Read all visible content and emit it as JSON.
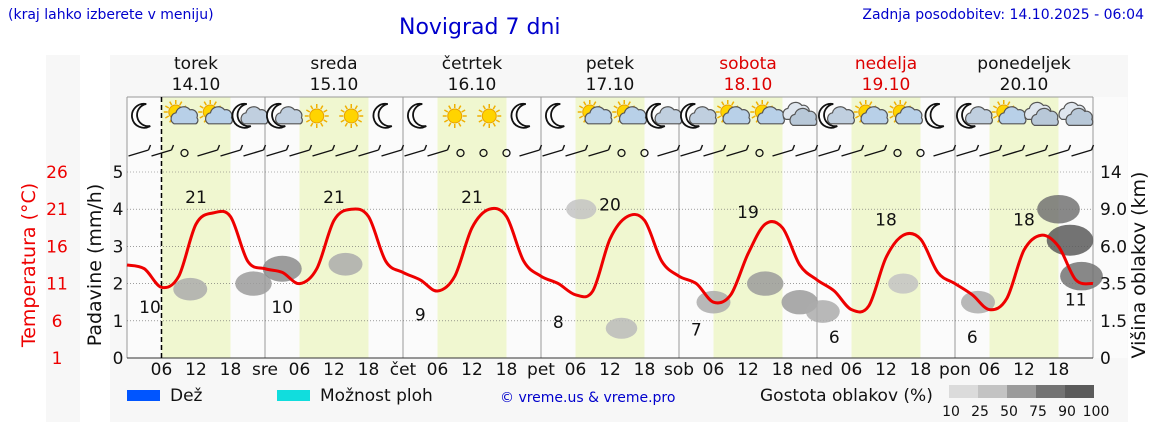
{
  "header": {
    "note": "(kraj lahko izberete v meniju)",
    "title": "Novigrad 7 dni",
    "updated": "Zadnja posodobitev: 14.10.2025 - 06:04"
  },
  "colors": {
    "temperature": "#ee0000",
    "day_band": "#f0f7d0",
    "rain": "#0055ff",
    "showers": "#11dddd",
    "weekend": "#dd0000",
    "link": "#0000cc"
  },
  "legend": {
    "rain_label": "Dež",
    "showers_label": "Možnost ploh",
    "copyright": "© vreme.us & vreme.pro",
    "cloud_density_label": "Gostota oblakov (%)",
    "cloud_density_ticks": [
      "10",
      "25",
      "50",
      "75",
      "90",
      "100"
    ]
  },
  "chart_data": {
    "type": "line",
    "title": "Novigrad 7 dni",
    "days": [
      {
        "name": "torek",
        "date": "14.10",
        "weekend": false,
        "abbr": "sre"
      },
      {
        "name": "sreda",
        "date": "15.10",
        "weekend": false,
        "abbr": "čet"
      },
      {
        "name": "četrtek",
        "date": "16.10",
        "weekend": false,
        "abbr": "pet"
      },
      {
        "name": "petek",
        "date": "17.10",
        "weekend": false,
        "abbr": "sob"
      },
      {
        "name": "sobota",
        "date": "18.10",
        "weekend": true,
        "abbr": "ned"
      },
      {
        "name": "nedelja",
        "date": "19.10",
        "weekend": true,
        "abbr": "pon"
      },
      {
        "name": "ponedeljek",
        "date": "20.10",
        "weekend": false,
        "abbr": ""
      }
    ],
    "x_hour_ticks": [
      "06",
      "12",
      "18"
    ],
    "x_start_hour": 0,
    "x_end_hour": 168,
    "now_hour": 6,
    "temp_axis": {
      "label": "Temperatura (°C)",
      "ticks": [
        1,
        6,
        11,
        16,
        21,
        26
      ],
      "range": [
        1,
        26
      ]
    },
    "precip_axis": {
      "label": "Padavine (mm/h)",
      "ticks": [
        0,
        1,
        2,
        3,
        4,
        5
      ],
      "range": [
        0,
        5
      ]
    },
    "cloud_axis": {
      "label": "Višina oblakov (km)",
      "ticks": [
        "0",
        "1.5",
        "3.5",
        "6.0",
        "9.0",
        "14"
      ]
    },
    "temperature": {
      "hours": [
        0,
        3,
        6,
        9,
        12,
        15,
        18,
        21,
        24,
        27,
        30,
        33,
        36,
        39,
        42,
        45,
        48,
        51,
        54,
        57,
        60,
        63,
        66,
        69,
        72,
        75,
        78,
        81,
        84,
        87,
        90,
        93,
        96,
        99,
        102,
        105,
        108,
        111,
        114,
        117,
        120,
        123,
        126,
        129,
        132,
        135,
        138,
        141,
        144,
        147,
        150,
        153,
        156,
        159,
        162,
        165,
        168
      ],
      "values": [
        13.5,
        13,
        10.5,
        12,
        19,
        20.5,
        20,
        14,
        13,
        12.5,
        11,
        13,
        19.5,
        21,
        20,
        14,
        12.5,
        11.5,
        10,
        12,
        18.5,
        21,
        20,
        14,
        12,
        11,
        9.5,
        10,
        17,
        20,
        19.5,
        14,
        12,
        11,
        8.5,
        9.5,
        15,
        19,
        18.5,
        13.5,
        11.5,
        10,
        7.5,
        8,
        14.5,
        17.5,
        17,
        12.5,
        11,
        9.5,
        7.5,
        9,
        15.5,
        17.5,
        16,
        11.5,
        11
      ]
    },
    "temp_labels": [
      {
        "hour": 4,
        "value": 10,
        "text": "10"
      },
      {
        "hour": 12,
        "value": 21,
        "text": "21"
      },
      {
        "hour": 27,
        "value": 10,
        "text": "10"
      },
      {
        "hour": 36,
        "value": 21,
        "text": "21"
      },
      {
        "hour": 51,
        "value": 9,
        "text": "9"
      },
      {
        "hour": 60,
        "value": 21,
        "text": "21"
      },
      {
        "hour": 75,
        "value": 8,
        "text": "8"
      },
      {
        "hour": 84,
        "value": 20,
        "text": "20"
      },
      {
        "hour": 99,
        "value": 7,
        "text": "7"
      },
      {
        "hour": 108,
        "value": 19,
        "text": "19"
      },
      {
        "hour": 123,
        "value": 6,
        "text": "6"
      },
      {
        "hour": 132,
        "value": 18,
        "text": "18"
      },
      {
        "hour": 147,
        "value": 6,
        "text": "6"
      },
      {
        "hour": 156,
        "value": 18,
        "text": "18"
      },
      {
        "hour": 165,
        "value": 11,
        "text": "11"
      }
    ],
    "sky_symbols": [
      "moon",
      "sun-cloud",
      "sun-cloud",
      "moon-cloud",
      "moon-cloud",
      "sun",
      "sun",
      "moon",
      "moon",
      "sun",
      "sun",
      "moon",
      "moon",
      "sun-cloud",
      "sun-cloud",
      "moon-cloud",
      "moon-cloud",
      "sun-cloud",
      "sun-cloud",
      "cloud",
      "moon-cloud",
      "sun-cloud",
      "sun-cloud",
      "moon",
      "moon-cloud",
      "sun-cloud",
      "cloud",
      "cloud"
    ],
    "wind_symbols": [
      "barb",
      "barb",
      "calm",
      "barb",
      "barb",
      "barb",
      "barb",
      "barb",
      "barb",
      "barb",
      "barb",
      "barb",
      "barb",
      "barb",
      "calm",
      "calm",
      "calm",
      "barb",
      "barb",
      "barb",
      "barb",
      "calm",
      "calm",
      "barb",
      "barb",
      "barb",
      "barb",
      "calm",
      "barb",
      "barb",
      "barb",
      "barb",
      "barb",
      "calm",
      "calm",
      "barb",
      "barb",
      "barb",
      "barb",
      "barb",
      "barb",
      "barb"
    ],
    "clouds": [
      {
        "hour": 11,
        "km": 3.2,
        "density": 40
      },
      {
        "hour": 22,
        "km": 3.5,
        "density": 50
      },
      {
        "hour": 27,
        "km": 4.5,
        "density": 60
      },
      {
        "hour": 38,
        "km": 4.8,
        "density": 40
      },
      {
        "hour": 79,
        "km": 9.0,
        "density": 25
      },
      {
        "hour": 86,
        "km": 1.2,
        "density": 30
      },
      {
        "hour": 102,
        "km": 2.5,
        "density": 40
      },
      {
        "hour": 111,
        "km": 3.5,
        "density": 50
      },
      {
        "hour": 117,
        "km": 2.5,
        "density": 50
      },
      {
        "hour": 121,
        "km": 2.0,
        "density": 40
      },
      {
        "hour": 135,
        "km": 3.5,
        "density": 25
      },
      {
        "hour": 148,
        "km": 2.5,
        "density": 40
      },
      {
        "hour": 162,
        "km": 9.0,
        "density": 75
      },
      {
        "hour": 164,
        "km": 6.5,
        "density": 90
      },
      {
        "hour": 166,
        "km": 4.0,
        "density": 75
      }
    ]
  }
}
